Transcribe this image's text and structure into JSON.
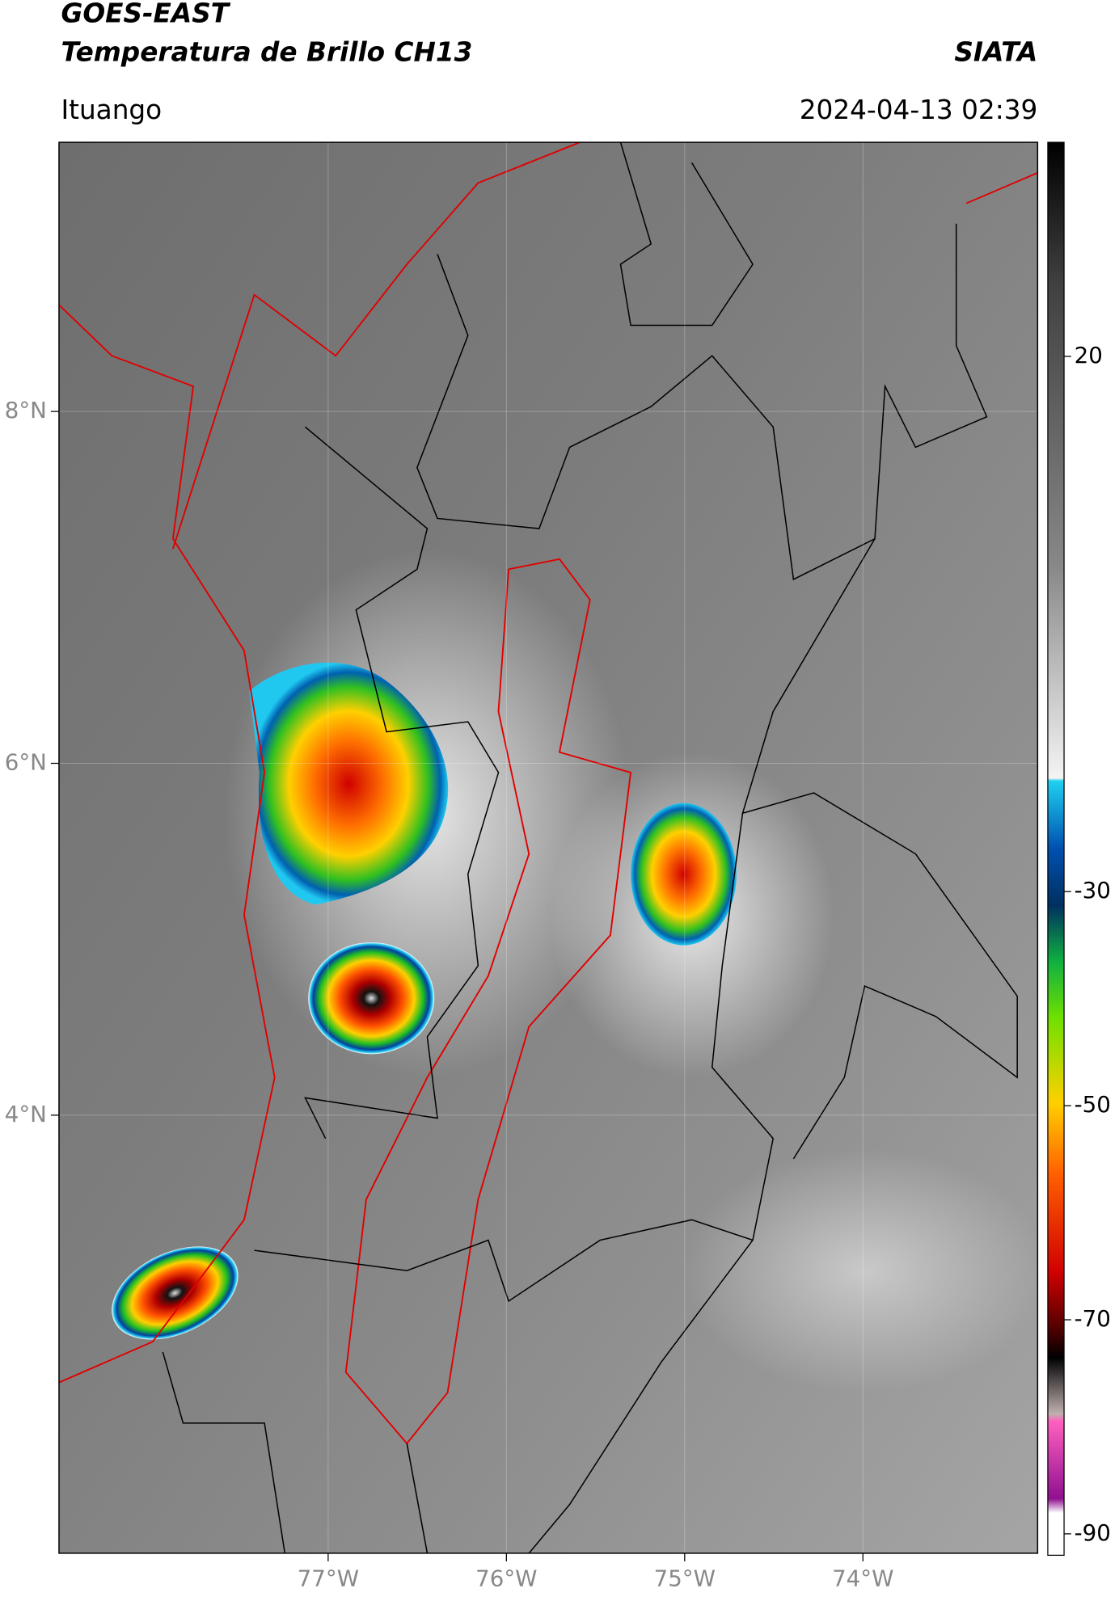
{
  "chart_data": {
    "type": "map",
    "title": "GOES-EAST",
    "subtitle": "Temperatura de Brillo CH13",
    "brand": "SIATA",
    "location": "Ituango",
    "timestamp": "2024-04-13 02:39",
    "xlim": [
      -78.51,
      -73.02
    ],
    "ylim": [
      1.51,
      9.53
    ],
    "xticks": [
      {
        "value": -77,
        "label": "77°W"
      },
      {
        "value": -76,
        "label": "76°W"
      },
      {
        "value": -75,
        "label": "75°W"
      },
      {
        "value": -74,
        "label": "74°W"
      }
    ],
    "yticks": [
      {
        "value": 8,
        "label": "8°N"
      },
      {
        "value": 6,
        "label": "6°N"
      },
      {
        "value": 4,
        "label": "4°N"
      }
    ],
    "grid": true,
    "colorbar": {
      "lim": [
        -92,
        40
      ],
      "ticks": [
        20,
        -30,
        -50,
        -70,
        -90
      ]
    }
  }
}
